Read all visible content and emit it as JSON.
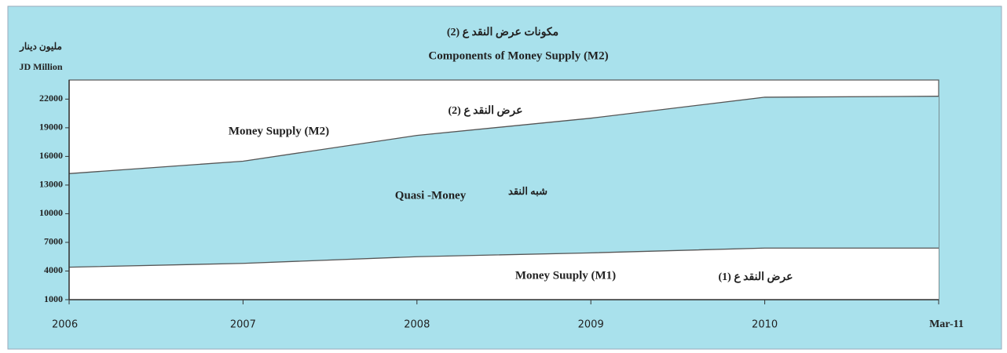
{
  "chart_data": {
    "type": "area",
    "title_ar": "مكونات عرض النقد ع (2)",
    "title": "Components of Money Supply (M2)",
    "y_label_ar": "مليون دينار",
    "y_label": "JD Million",
    "categories": [
      "2006",
      "2007",
      "2008",
      "2009",
      "2010",
      "Mar-11"
    ],
    "series": [
      {
        "name": "Money Supply (M2)",
        "name_ar": "عرض النقد ع (2)",
        "color": "#a9e1ec",
        "values": [
          14200,
          15500,
          18200,
          20000,
          22200,
          22300
        ]
      },
      {
        "name": "Money Suuply (M1)",
        "name_ar": "عرض النقد ع (1)",
        "color": "#ffffff",
        "values": [
          4400,
          4800,
          5500,
          5900,
          6400,
          6400
        ]
      }
    ],
    "annotations": [
      "Quasi -Money",
      "شبه النقد"
    ],
    "ylim": [
      1000,
      24000
    ],
    "yticks": [
      1000,
      4000,
      7000,
      10000,
      13000,
      16000,
      19000,
      22000
    ]
  }
}
